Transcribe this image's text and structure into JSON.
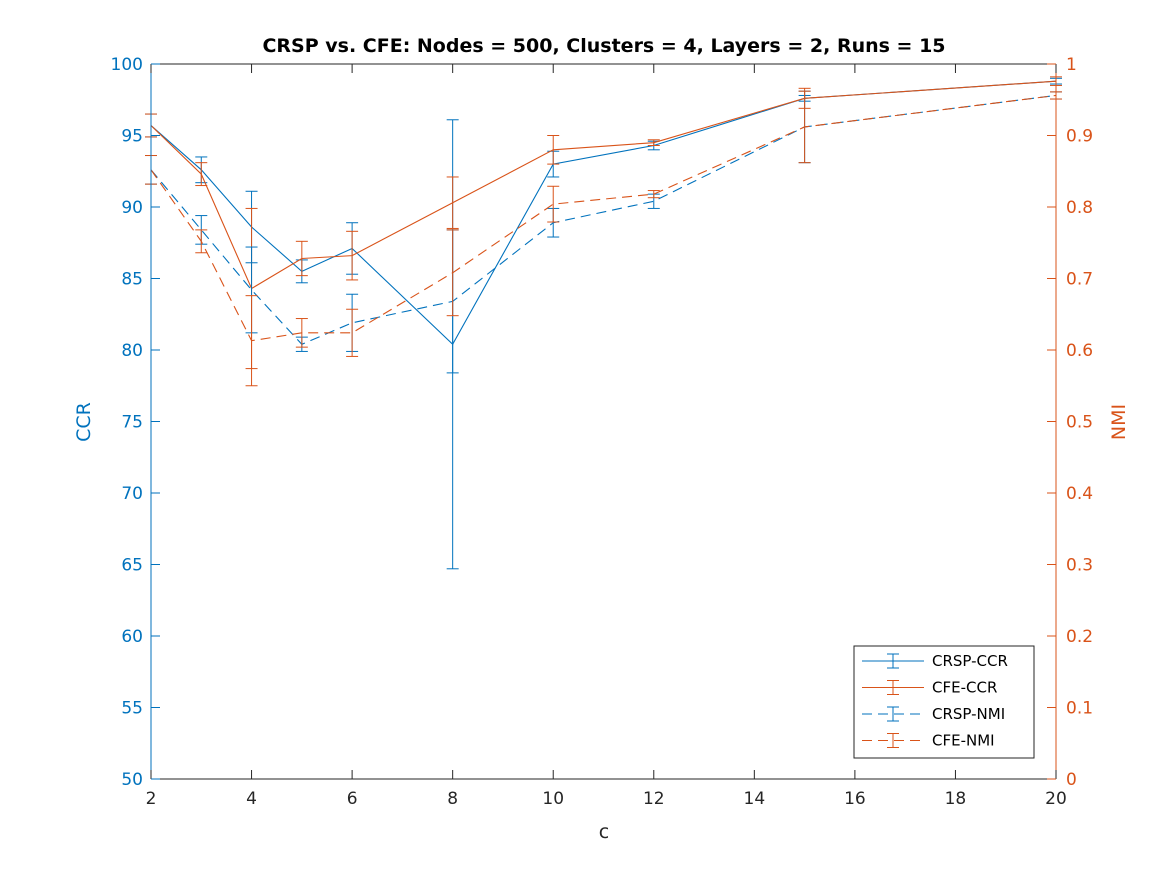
{
  "chart_data": {
    "type": "line",
    "title": "CRSP vs. CFE: Nodes = 500, Clusters = 4, Layers = 2, Runs = 15",
    "xlabel": "c",
    "ylabel_left": "CCR",
    "ylabel_right": "NMI",
    "xlim": [
      2,
      20
    ],
    "ylim_left": [
      50,
      100
    ],
    "ylim_right": [
      0,
      1
    ],
    "x": [
      2,
      3,
      4,
      5,
      6,
      8,
      10,
      12,
      15,
      20
    ],
    "x_ticks": [
      "2",
      "4",
      "6",
      "8",
      "10",
      "12",
      "14",
      "16",
      "18",
      "20"
    ],
    "y_ticks_left": [
      "50",
      "55",
      "60",
      "65",
      "70",
      "75",
      "80",
      "85",
      "90",
      "95",
      "100"
    ],
    "y_ticks_right": [
      "0",
      "0.1",
      "0.2",
      "0.3",
      "0.4",
      "0.5",
      "0.6",
      "0.7",
      "0.8",
      "0.9",
      "1"
    ],
    "grid": false,
    "legend_position": "bottom-right",
    "colors": {
      "blue": "#0072BD",
      "orange": "#D95319"
    },
    "series": [
      {
        "name": "CRSP-CCR",
        "axis": "left",
        "color": "#0072BD",
        "style": "solid",
        "values": [
          95.7,
          92.6,
          88.6,
          85.5,
          87.1,
          80.4,
          93.0,
          94.3,
          97.6,
          98.8
        ],
        "err": [
          0.8,
          0.9,
          2.5,
          0.8,
          1.8,
          15.7,
          0.9,
          0.3,
          0.2,
          0.2
        ]
      },
      {
        "name": "CFE-CCR",
        "axis": "left",
        "color": "#D95319",
        "style": "solid",
        "values": [
          95.7,
          92.3,
          84.3,
          86.4,
          86.6,
          90.3,
          94.0,
          94.5,
          97.6,
          98.8
        ],
        "err": [
          0.8,
          0.8,
          5.6,
          1.2,
          1.7,
          1.8,
          1.0,
          0.2,
          0.7,
          0.3
        ]
      },
      {
        "name": "CRSP-NMI",
        "axis": "right",
        "color": "#0072BD",
        "style": "dashed",
        "values": [
          0.852,
          0.768,
          0.684,
          0.608,
          0.638,
          0.668,
          0.778,
          0.808,
          0.912,
          0.956
        ],
        "err": [
          0.02,
          0.02,
          0.06,
          0.01,
          0.04,
          0.1,
          0.02,
          0.01,
          0.05,
          0.005
        ]
      },
      {
        "name": "CFE-NMI",
        "axis": "right",
        "color": "#D95319",
        "style": "dashed",
        "values": [
          0.852,
          0.752,
          0.613,
          0.624,
          0.624,
          0.708,
          0.804,
          0.818,
          0.912,
          0.956
        ],
        "err": [
          0.02,
          0.016,
          0.063,
          0.02,
          0.033,
          0.06,
          0.025,
          0.005,
          0.05,
          0.005
        ]
      }
    ]
  }
}
